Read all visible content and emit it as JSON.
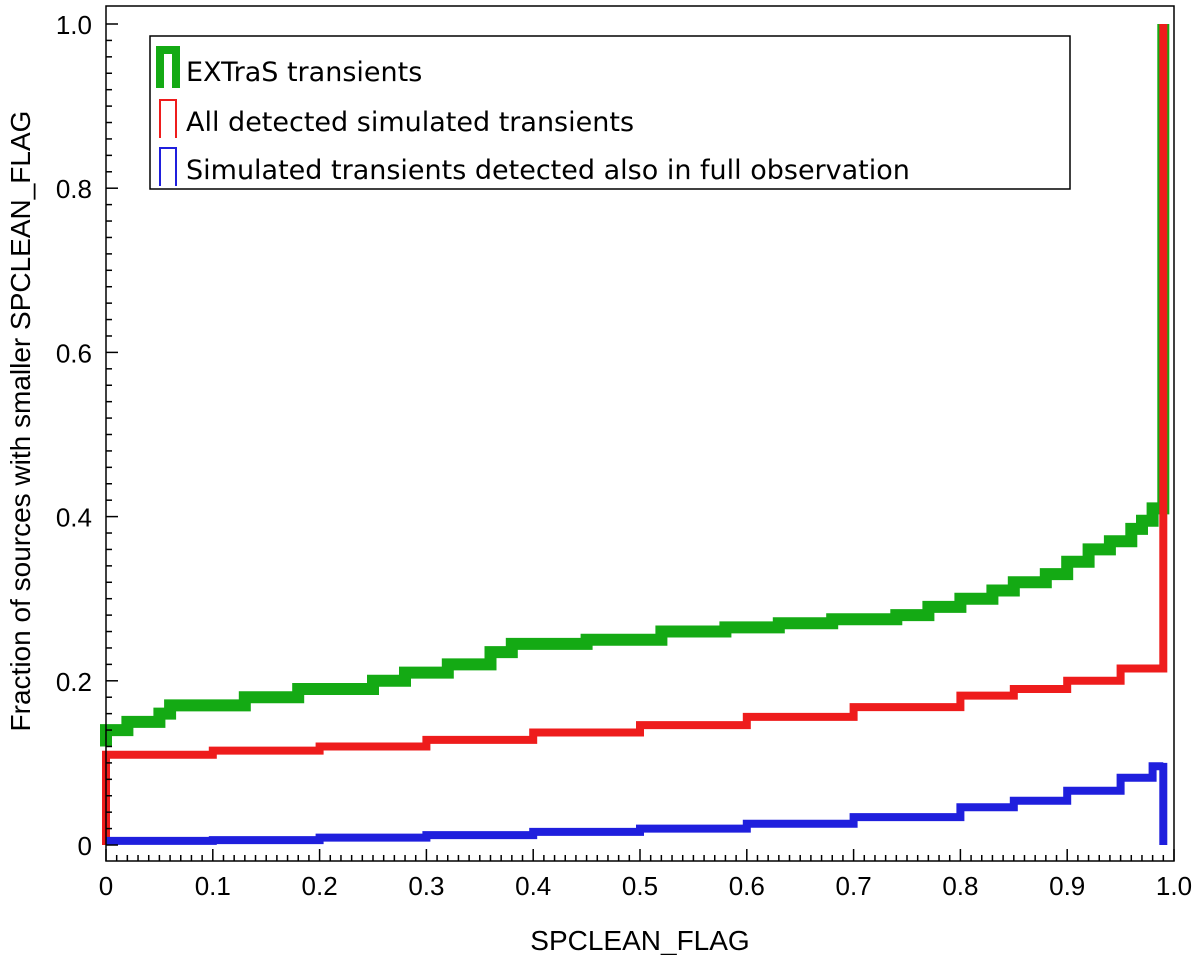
{
  "chart_data": {
    "type": "line",
    "step": true,
    "cumulative": true,
    "xlabel": "SPCLEAN_FLAG",
    "ylabel": "Fraction of sources with smaller SPCLEAN_FLAG",
    "xlim": [
      0,
      1.0
    ],
    "ylim": [
      0,
      1.0
    ],
    "x_ticks": [
      0,
      0.1,
      0.2,
      0.3,
      0.4,
      0.5,
      0.6,
      0.7,
      0.8,
      0.9,
      1.0
    ],
    "x_tick_labels": [
      "0",
      "0.1",
      "0.2",
      "0.3",
      "0.4",
      "0.5",
      "0.6",
      "0.7",
      "0.8",
      "0.9",
      "1.0"
    ],
    "y_ticks": [
      0,
      0.2,
      0.4,
      0.6,
      0.8,
      1.0
    ],
    "y_tick_labels": [
      "0",
      "0.2",
      "0.4",
      "0.6",
      "0.8",
      "1.0"
    ],
    "grid": false,
    "legend_position": "top-left",
    "series": [
      {
        "name": "EXTraS transients",
        "color": "#14aa14",
        "stroke_weight": "thick",
        "x": [
          0.0,
          0.0,
          0.02,
          0.05,
          0.06,
          0.13,
          0.18,
          0.25,
          0.28,
          0.32,
          0.36,
          0.38,
          0.45,
          0.52,
          0.58,
          0.63,
          0.68,
          0.74,
          0.77,
          0.8,
          0.83,
          0.85,
          0.88,
          0.9,
          0.92,
          0.94,
          0.96,
          0.97,
          0.98,
          0.99,
          0.99
        ],
        "y": [
          0.12,
          0.14,
          0.15,
          0.16,
          0.17,
          0.18,
          0.19,
          0.2,
          0.21,
          0.22,
          0.235,
          0.245,
          0.25,
          0.26,
          0.265,
          0.27,
          0.275,
          0.28,
          0.29,
          0.3,
          0.31,
          0.32,
          0.33,
          0.345,
          0.36,
          0.37,
          0.385,
          0.395,
          0.41,
          0.43,
          1.0
        ]
      },
      {
        "name": "All detected simulated transients",
        "color": "#ee1c1c",
        "stroke_weight": "thin",
        "x": [
          0.0,
          0.0,
          0.1,
          0.2,
          0.3,
          0.4,
          0.5,
          0.6,
          0.7,
          0.8,
          0.85,
          0.9,
          0.95,
          0.99,
          0.99
        ],
        "y": [
          0.0,
          0.11,
          0.115,
          0.12,
          0.128,
          0.137,
          0.146,
          0.156,
          0.168,
          0.182,
          0.19,
          0.2,
          0.215,
          0.235,
          1.0
        ]
      },
      {
        "name": "Simulated transients detected also in full observation",
        "color": "#1f1fdd",
        "stroke_weight": "thin",
        "x": [
          0.0,
          0.1,
          0.2,
          0.3,
          0.4,
          0.5,
          0.6,
          0.7,
          0.8,
          0.85,
          0.9,
          0.95,
          0.98,
          0.99,
          0.99
        ],
        "y": [
          0.005,
          0.006,
          0.009,
          0.012,
          0.016,
          0.02,
          0.026,
          0.034,
          0.046,
          0.054,
          0.066,
          0.082,
          0.096,
          0.1,
          0.0
        ]
      }
    ]
  }
}
